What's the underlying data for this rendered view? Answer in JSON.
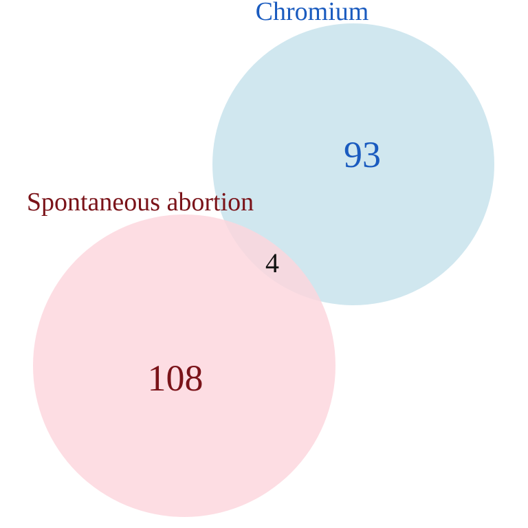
{
  "venn": {
    "sets": [
      {
        "label": "Spontaneous abortion",
        "unique_count": "108",
        "fill_color": "#fcd5dd",
        "text_color": "#7a1319"
      },
      {
        "label": "Chromium",
        "unique_count": "93",
        "fill_color": "#cde6ee",
        "text_color": "#1a5bbf"
      }
    ],
    "intersection_count": "4",
    "intersection_text_color": "#111111"
  }
}
